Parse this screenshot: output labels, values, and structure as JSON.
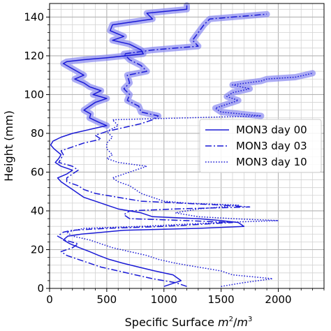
{
  "chart_data": {
    "type": "line",
    "title": "",
    "xlabel_prefix": "Specific Surface ",
    "xlabel_unit_num": "m",
    "xlabel_unit_sup1": "2",
    "xlabel_unit_sep": "/",
    "xlabel_unit_den": "m",
    "xlabel_unit_sup2": "3",
    "ylabel": "Height (mm)",
    "xlim": [
      0,
      2400
    ],
    "ylim": [
      0,
      147
    ],
    "xticks": [
      0,
      500,
      1000,
      1500,
      2000
    ],
    "yticks": [
      0,
      20,
      40,
      60,
      80,
      100,
      120,
      140
    ],
    "grid": true,
    "legend_position": "center-right",
    "highlight_color": "#8080f0",
    "series": [
      {
        "name": "MON3 day 00",
        "color": "#1a1ad6",
        "dash": "solid",
        "highlight_above": 84,
        "points": [
          [
            1000,
            1
          ],
          [
            1150,
            4
          ],
          [
            1080,
            7
          ],
          [
            920,
            9
          ],
          [
            780,
            11
          ],
          [
            640,
            13
          ],
          [
            520,
            15
          ],
          [
            430,
            17
          ],
          [
            350,
            19
          ],
          [
            260,
            21
          ],
          [
            180,
            23
          ],
          [
            120,
            25
          ],
          [
            160,
            27
          ],
          [
            280,
            28
          ],
          [
            650,
            30
          ],
          [
            1300,
            31
          ],
          [
            1700,
            32
          ],
          [
            1650,
            34
          ],
          [
            1500,
            35
          ],
          [
            1300,
            36
          ],
          [
            900,
            37
          ],
          [
            800,
            39
          ],
          [
            600,
            41
          ],
          [
            500,
            43
          ],
          [
            400,
            45
          ],
          [
            300,
            47
          ],
          [
            250,
            49
          ],
          [
            200,
            51
          ],
          [
            150,
            53
          ],
          [
            100,
            55
          ],
          [
            70,
            57
          ],
          [
            150,
            59
          ],
          [
            200,
            61
          ],
          [
            100,
            63
          ],
          [
            50,
            65
          ],
          [
            80,
            67
          ],
          [
            100,
            69
          ],
          [
            40,
            72
          ],
          [
            10,
            74
          ],
          [
            30,
            76
          ],
          [
            100,
            78
          ],
          [
            200,
            80
          ],
          [
            350,
            82
          ],
          [
            500,
            84
          ],
          [
            420,
            86
          ],
          [
            350,
            88
          ],
          [
            360,
            90
          ],
          [
            300,
            92
          ],
          [
            350,
            94
          ],
          [
            400,
            96
          ],
          [
            500,
            98
          ],
          [
            380,
            100
          ],
          [
            450,
            102
          ],
          [
            350,
            104
          ],
          [
            300,
            106
          ],
          [
            220,
            108
          ],
          [
            300,
            110
          ],
          [
            240,
            112
          ],
          [
            180,
            114
          ],
          [
            120,
            116
          ],
          [
            150,
            117
          ],
          [
            300,
            118
          ],
          [
            500,
            119
          ],
          [
            820,
            121
          ],
          [
            800,
            123
          ],
          [
            700,
            126
          ],
          [
            550,
            128
          ],
          [
            650,
            130
          ],
          [
            530,
            133
          ],
          [
            550,
            136
          ],
          [
            900,
            139
          ],
          [
            850,
            142
          ],
          [
            1200,
            144
          ],
          [
            1200,
            146
          ]
        ]
      },
      {
        "name": "MON3 day 03",
        "color": "#1a1ad6",
        "dash": "dashdot",
        "highlight_above": 89,
        "points": [
          [
            1200,
            1
          ],
          [
            1100,
            3
          ],
          [
            900,
            5
          ],
          [
            750,
            7
          ],
          [
            600,
            9
          ],
          [
            450,
            11
          ],
          [
            350,
            13
          ],
          [
            250,
            15
          ],
          [
            150,
            17
          ],
          [
            100,
            19
          ],
          [
            200,
            21
          ],
          [
            250,
            23
          ],
          [
            130,
            25
          ],
          [
            70,
            27
          ],
          [
            120,
            29
          ],
          [
            200,
            30
          ],
          [
            500,
            31
          ],
          [
            1000,
            32
          ],
          [
            1600,
            34
          ],
          [
            1200,
            35
          ],
          [
            700,
            36
          ],
          [
            650,
            38
          ],
          [
            700,
            40
          ],
          [
            1100,
            41
          ],
          [
            1750,
            42
          ],
          [
            1500,
            43
          ],
          [
            800,
            45
          ],
          [
            600,
            47
          ],
          [
            400,
            49
          ],
          [
            300,
            51
          ],
          [
            250,
            53
          ],
          [
            150,
            55
          ],
          [
            150,
            57
          ],
          [
            200,
            59
          ],
          [
            250,
            61
          ],
          [
            200,
            63
          ],
          [
            80,
            65
          ],
          [
            100,
            67
          ],
          [
            120,
            69
          ],
          [
            100,
            71
          ],
          [
            200,
            73
          ],
          [
            300,
            75
          ],
          [
            450,
            77
          ],
          [
            400,
            79
          ],
          [
            500,
            81
          ],
          [
            650,
            83
          ],
          [
            800,
            85
          ],
          [
            900,
            87
          ],
          [
            950,
            89
          ],
          [
            800,
            91
          ],
          [
            780,
            94
          ],
          [
            680,
            97
          ],
          [
            700,
            100
          ],
          [
            650,
            103
          ],
          [
            700,
            106
          ],
          [
            680,
            110
          ],
          [
            850,
            112
          ],
          [
            800,
            115
          ],
          [
            700,
            118
          ],
          [
            650,
            121
          ],
          [
            900,
            123
          ],
          [
            1300,
            125
          ],
          [
            1250,
            128
          ],
          [
            1300,
            132
          ],
          [
            1350,
            136
          ],
          [
            1400,
            139
          ],
          [
            1800,
            141
          ],
          [
            1900,
            141.5
          ]
        ]
      },
      {
        "name": "MON3 day 10",
        "color": "#1a1ad6",
        "dash": "dotted",
        "highlight_above": 89,
        "points": [
          [
            1500,
            1
          ],
          [
            1700,
            3
          ],
          [
            1950,
            5
          ],
          [
            1600,
            7
          ],
          [
            1500,
            9
          ],
          [
            1300,
            11
          ],
          [
            1100,
            13
          ],
          [
            950,
            15
          ],
          [
            850,
            17
          ],
          [
            700,
            19
          ],
          [
            550,
            21
          ],
          [
            450,
            23
          ],
          [
            350,
            25
          ],
          [
            200,
            27
          ],
          [
            150,
            29
          ],
          [
            300,
            31
          ],
          [
            800,
            32
          ],
          [
            1500,
            34
          ],
          [
            2000,
            35
          ],
          [
            1600,
            36
          ],
          [
            1300,
            37
          ],
          [
            1100,
            39
          ],
          [
            1300,
            41
          ],
          [
            1500,
            42
          ],
          [
            1650,
            43
          ],
          [
            1200,
            44
          ],
          [
            1000,
            45
          ],
          [
            900,
            47
          ],
          [
            800,
            49
          ],
          [
            750,
            51
          ],
          [
            700,
            53
          ],
          [
            600,
            55
          ],
          [
            550,
            57
          ],
          [
            650,
            59
          ],
          [
            750,
            61
          ],
          [
            850,
            63
          ],
          [
            600,
            65
          ],
          [
            500,
            67
          ],
          [
            550,
            69
          ],
          [
            500,
            72
          ],
          [
            500,
            75
          ],
          [
            550,
            78
          ],
          [
            500,
            81
          ],
          [
            600,
            84
          ],
          [
            550,
            87
          ],
          [
            1850,
            89
          ],
          [
            1500,
            91
          ],
          [
            1450,
            93
          ],
          [
            1550,
            95
          ],
          [
            1650,
            97
          ],
          [
            1550,
            99
          ],
          [
            1600,
            101
          ],
          [
            1750,
            103
          ],
          [
            1600,
            105
          ],
          [
            1850,
            107
          ],
          [
            1900,
            108
          ],
          [
            2150,
            109
          ],
          [
            2300,
            111
          ]
        ]
      }
    ]
  }
}
